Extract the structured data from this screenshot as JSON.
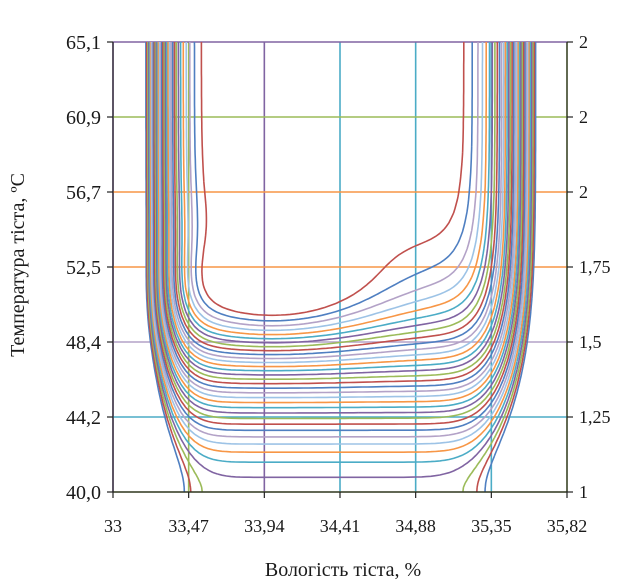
{
  "chart_data": {
    "type": "contour",
    "xlabel": "Вологість тіста, %",
    "ylabel": "Температура тіста, ºС",
    "x_ticks": [
      "33",
      "33,47",
      "33,94",
      "34,41",
      "34,88",
      "35,35",
      "35,82"
    ],
    "y_ticks": [
      "40,0",
      "44,2",
      "48,4",
      "52,5",
      "56,7",
      "60,9",
      "65,1"
    ],
    "y2_ticks": [
      "1",
      "1,25",
      "1,5",
      "1,75",
      "2",
      "2",
      "2"
    ],
    "xlim": [
      33,
      35.82
    ],
    "ylim": [
      40.0,
      65.1
    ],
    "grid": true,
    "colors": [
      "#4f7fc1",
      "#c0504d",
      "#9bbb59",
      "#8064a2",
      "#4bacc6",
      "#f79646",
      "#9dc3e6",
      "#b3a2c7"
    ]
  }
}
